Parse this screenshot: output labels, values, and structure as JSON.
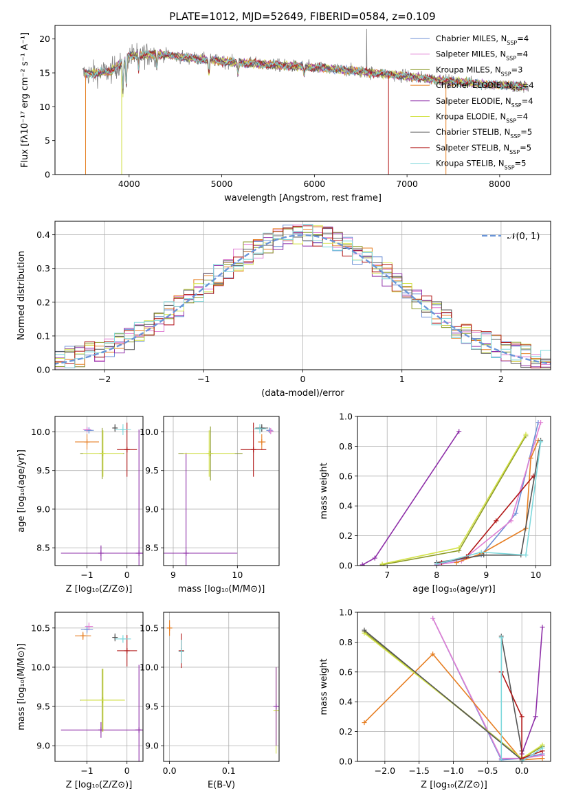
{
  "figure": {
    "title": "PLATE=1012, MJD=52649, FIBERID=0584, z=0.109"
  },
  "series": [
    {
      "name": "Chabrier MILES",
      "n_ssp": "4",
      "color": "#6d8fd6"
    },
    {
      "name": "Salpeter MILES",
      "n_ssp": "4",
      "color": "#e07ed3"
    },
    {
      "name": "Kroupa MILES",
      "n_ssp": "3",
      "color": "#8c9a28"
    },
    {
      "name": "Chabrier ELODIE",
      "n_ssp": "4",
      "color": "#e67e22"
    },
    {
      "name": "Salpeter ELODIE",
      "n_ssp": "4",
      "color": "#8e2fa8"
    },
    {
      "name": "Kroupa ELODIE",
      "n_ssp": "4",
      "color": "#d4e34a"
    },
    {
      "name": "Chabrier STELIB",
      "n_ssp": "5",
      "color": "#555555"
    },
    {
      "name": "Salpeter STELIB",
      "n_ssp": "5",
      "color": "#b01515"
    },
    {
      "name": "Kroupa STELIB",
      "n_ssp": "5",
      "color": "#7dd8dc"
    }
  ],
  "chart_data": [
    {
      "id": "spectrum",
      "type": "line",
      "xlabel": "wavelength [Angstrom, rest frame]",
      "ylabel": "Flux [fλ10⁻¹⁷ erg cm⁻² s⁻¹ A⁻¹]",
      "xlim": [
        3200,
        8550
      ],
      "ylim": [
        0,
        22
      ],
      "xticks": [
        4000,
        5000,
        6000,
        7000,
        8000
      ],
      "yticks": [
        0,
        5,
        10,
        15,
        20
      ],
      "grid": false,
      "legend": "top-right",
      "observed_trend": [
        [
          3500,
          14.8
        ],
        [
          3800,
          15.2
        ],
        [
          4000,
          17.5
        ],
        [
          4300,
          17.8
        ],
        [
          4600,
          17.3
        ],
        [
          5000,
          16.7
        ],
        [
          5500,
          16.2
        ],
        [
          6000,
          15.8
        ],
        [
          6500,
          15.2
        ],
        [
          7000,
          14.5
        ],
        [
          7500,
          13.7
        ],
        [
          8000,
          13.2
        ],
        [
          8300,
          13.0
        ]
      ]
    },
    {
      "id": "residuals",
      "type": "line",
      "xlabel": "(data-model)/error",
      "ylabel": "Normed distribution",
      "xlim": [
        -2.5,
        2.5
      ],
      "ylim": [
        0,
        0.44
      ],
      "xticks": [
        -2,
        -1,
        0,
        1,
        2
      ],
      "yticks": [
        0.0,
        0.1,
        0.2,
        0.3,
        0.4
      ],
      "grid": true,
      "legend": "top-right",
      "reference_label": "𝒩(0, 1)",
      "reference": {
        "mean": 0,
        "sigma": 1
      }
    },
    {
      "id": "age-vs-z",
      "type": "scatter",
      "xlabel": "Z [log₁₀(Z/Z⊙)]",
      "ylabel": "age  [log₁₀(age/yr)]",
      "xlim": [
        -1.8,
        0.4
      ],
      "ylim": [
        8.27,
        10.2
      ],
      "xticks": [
        -1,
        0
      ],
      "yticks": [
        8.5,
        9.0,
        9.5,
        10.0
      ],
      "grid": true,
      "points": [
        {
          "s": 0,
          "x": -0.95,
          "y": 10.02,
          "xe": 0.12,
          "ye": 0.04
        },
        {
          "s": 1,
          "x": -1.0,
          "y": 10.03,
          "xe": 0.1,
          "ye": 0.03
        },
        {
          "s": 2,
          "x": -0.62,
          "y": 9.72,
          "xe": 0.55,
          "ye": 0.33
        },
        {
          "s": 3,
          "x": -1.0,
          "y": 9.87,
          "xe": 0.3,
          "ye": 0.1
        },
        {
          "s": 4,
          "x": -0.65,
          "y": 8.43,
          "xe": 1.0,
          "ye": 0.1
        },
        {
          "s": 4,
          "x": 0.3,
          "y": 8.43,
          "xe": 0.1,
          "ye": 1.6
        },
        {
          "s": 5,
          "x": -0.6,
          "y": 9.72,
          "xe": 0.5,
          "ye": 0.3
        },
        {
          "s": 6,
          "x": -0.3,
          "y": 10.05,
          "xe": 0.05,
          "ye": 0.05
        },
        {
          "s": 7,
          "x": 0.0,
          "y": 9.77,
          "xe": 0.25,
          "ye": 0.35
        },
        {
          "s": 8,
          "x": -0.1,
          "y": 10.03,
          "xe": 0.2,
          "ye": 0.07
        }
      ]
    },
    {
      "id": "age-vs-mass",
      "type": "scatter",
      "xlabel": "mass [log₁₀(M/M⊙)]",
      "ylabel": "",
      "xlim": [
        8.85,
        10.65
      ],
      "ylim": [
        8.27,
        10.2
      ],
      "xticks": [
        9,
        10
      ],
      "yticks": [
        8.5,
        9.0,
        9.5,
        10.0
      ],
      "grid": true,
      "points": [
        {
          "s": 0,
          "x": 10.5,
          "y": 10.02,
          "xe": 0.05,
          "ye": 0.03
        },
        {
          "s": 1,
          "x": 10.52,
          "y": 10.01,
          "xe": 0.04,
          "ye": 0.04
        },
        {
          "s": 2,
          "x": 9.58,
          "y": 9.72,
          "xe": 0.5,
          "ye": 0.35
        },
        {
          "s": 3,
          "x": 10.38,
          "y": 9.87,
          "xe": 0.06,
          "ye": 0.1
        },
        {
          "s": 4,
          "x": 9.2,
          "y": 8.43,
          "xe": 0.8,
          "ye": 1.3
        },
        {
          "s": 5,
          "x": 9.56,
          "y": 9.72,
          "xe": 0.4,
          "ye": 0.3
        },
        {
          "s": 6,
          "x": 10.38,
          "y": 10.05,
          "xe": 0.1,
          "ye": 0.05
        },
        {
          "s": 7,
          "x": 10.25,
          "y": 9.77,
          "xe": 0.2,
          "ye": 0.35
        },
        {
          "s": 8,
          "x": 10.35,
          "y": 10.04,
          "xe": 0.1,
          "ye": 0.06
        }
      ]
    },
    {
      "id": "weight-vs-age",
      "type": "line",
      "xlabel": "age  [log₁₀(age/yr)]",
      "ylabel": "mass weight",
      "xlim": [
        6.4,
        10.3
      ],
      "ylim": [
        0,
        1
      ],
      "xticks": [
        7,
        8,
        9,
        10
      ],
      "yticks": [
        0.0,
        0.2,
        0.4,
        0.6,
        0.8,
        1.0
      ],
      "grid": true,
      "lines": [
        {
          "s": 0,
          "x": [
            8.0,
            8.9,
            9.6,
            10.05
          ],
          "y": [
            0.01,
            0.07,
            0.35,
            0.96
          ]
        },
        {
          "s": 1,
          "x": [
            8.0,
            8.5,
            9.5,
            10.1
          ],
          "y": [
            0.005,
            0.03,
            0.3,
            0.96
          ]
        },
        {
          "s": 2,
          "x": [
            6.9,
            8.45,
            9.8
          ],
          "y": [
            0.005,
            0.1,
            0.87
          ]
        },
        {
          "s": 3,
          "x": [
            8.4,
            8.9,
            9.8,
            9.9,
            10.05
          ],
          "y": [
            0.02,
            0.08,
            0.25,
            0.72,
            0.84
          ]
        },
        {
          "s": 4,
          "x": [
            6.5,
            6.75,
            8.45
          ],
          "y": [
            0.005,
            0.05,
            0.9
          ]
        },
        {
          "s": 5,
          "x": [
            6.9,
            8.45,
            9.8
          ],
          "y": [
            0.01,
            0.12,
            0.88
          ]
        },
        {
          "s": 6,
          "x": [
            8.0,
            8.95,
            9.7,
            10.1
          ],
          "y": [
            0.02,
            0.07,
            0.07,
            0.84
          ]
        },
        {
          "s": 7,
          "x": [
            8.1,
            8.6,
            9.2,
            9.95
          ],
          "y": [
            0.02,
            0.06,
            0.3,
            0.6
          ]
        },
        {
          "s": 8,
          "x": [
            8.0,
            8.9,
            9.8,
            10.1
          ],
          "y": [
            0.01,
            0.09,
            0.07,
            0.83
          ]
        }
      ]
    },
    {
      "id": "mass-vs-z",
      "type": "scatter",
      "xlabel": "Z [log₁₀(Z/Z⊙)]",
      "ylabel": "mass [log₁₀(M/M⊙)]",
      "xlim": [
        -1.8,
        0.4
      ],
      "ylim": [
        8.8,
        10.7
      ],
      "xticks": [
        -1,
        0
      ],
      "yticks": [
        9.0,
        9.5,
        10.0,
        10.5
      ],
      "grid": true,
      "points": [
        {
          "s": 0,
          "x": -1.0,
          "y": 10.48,
          "xe": 0.15,
          "ye": 0.05
        },
        {
          "s": 1,
          "x": -0.95,
          "y": 10.52,
          "xe": 0.1,
          "ye": 0.05
        },
        {
          "s": 2,
          "x": -0.62,
          "y": 9.58,
          "xe": 0.55,
          "ye": 0.4
        },
        {
          "s": 3,
          "x": -1.1,
          "y": 10.4,
          "xe": 0.2,
          "ye": 0.05
        },
        {
          "s": 4,
          "x": -0.65,
          "y": 9.2,
          "xe": 1.0,
          "ye": 0.1
        },
        {
          "s": 4,
          "x": 0.3,
          "y": 9.2,
          "xe": 0.1,
          "ye": 0.83
        },
        {
          "s": 5,
          "x": -0.6,
          "y": 9.58,
          "xe": 0.55,
          "ye": 0.4
        },
        {
          "s": 6,
          "x": -0.3,
          "y": 10.38,
          "xe": 0.05,
          "ye": 0.05
        },
        {
          "s": 7,
          "x": 0.0,
          "y": 10.21,
          "xe": 0.25,
          "ye": 0.2
        },
        {
          "s": 8,
          "x": -0.1,
          "y": 10.36,
          "xe": 0.2,
          "ye": 0.05
        }
      ]
    },
    {
      "id": "mass-vs-ebv",
      "type": "scatter",
      "xlabel": "E(B-V)",
      "ylabel": "",
      "xlim": [
        -0.01,
        0.185
      ],
      "ylim": [
        8.8,
        10.7
      ],
      "xticks": [
        0.0,
        0.1
      ],
      "yticks": [
        9.0,
        9.5,
        10.0,
        10.5
      ],
      "grid": true,
      "points": [
        {
          "s": 3,
          "x": 0.0,
          "y": 10.5,
          "xe": 0,
          "ye": 0.1
        },
        {
          "s": 7,
          "x": 0.02,
          "y": 10.21,
          "xe": 0,
          "ye": 0.22
        },
        {
          "s": 8,
          "x": 0.02,
          "y": 10.2,
          "xe": 0,
          "ye": 0.15
        },
        {
          "s": 5,
          "x": 0.18,
          "y": 9.45,
          "xe": 0,
          "ye": 0.55
        },
        {
          "s": 4,
          "x": 0.18,
          "y": 9.5,
          "xe": 0,
          "ye": 0.5
        }
      ]
    },
    {
      "id": "weight-vs-z",
      "type": "line",
      "xlabel": "Z [log₁₀(Z/Z⊙)]",
      "ylabel": "mass weight",
      "xlim": [
        -2.4,
        0.42
      ],
      "ylim": [
        0,
        1
      ],
      "xticks": [
        -2.0,
        -1.5,
        -1.0,
        -0.5,
        0.0
      ],
      "yticks": [
        0.0,
        0.2,
        0.4,
        0.6,
        0.8,
        1.0
      ],
      "grid": true,
      "lines": [
        {
          "s": 0,
          "x": [
            -1.3,
            -0.3,
            0.0,
            0.3
          ],
          "y": [
            0.96,
            0.01,
            0.02,
            0.05
          ]
        },
        {
          "s": 1,
          "x": [
            -1.3,
            -0.3,
            0.0,
            0.3
          ],
          "y": [
            0.96,
            0.02,
            0.02,
            0.04
          ]
        },
        {
          "s": 2,
          "x": [
            -2.3,
            0.0,
            0.3
          ],
          "y": [
            0.87,
            0.02,
            0.1
          ]
        },
        {
          "s": 3,
          "x": [
            -2.3,
            -1.3,
            0.0,
            0.3
          ],
          "y": [
            0.26,
            0.72,
            0.01,
            0.02
          ]
        },
        {
          "s": 4,
          "x": [
            0.0,
            0.2,
            0.3
          ],
          "y": [
            0.05,
            0.3,
            0.9
          ]
        },
        {
          "s": 5,
          "x": [
            -2.3,
            0.0,
            0.3
          ],
          "y": [
            0.86,
            0.02,
            0.11
          ]
        },
        {
          "s": 6,
          "x": [
            -2.3,
            0.0,
            0.0,
            -0.3,
            -0.3
          ],
          "y": [
            0.88,
            0.01,
            0.07,
            0.84,
            0.6
          ]
        },
        {
          "s": 7,
          "x": [
            -0.3,
            0.0,
            0.0,
            0.3
          ],
          "y": [
            0.6,
            0.3,
            0.02,
            0.07
          ]
        },
        {
          "s": 8,
          "x": [
            -0.3,
            -0.3,
            0.0,
            0.3
          ],
          "y": [
            0.83,
            0.0,
            0.0,
            0.09
          ]
        }
      ]
    }
  ]
}
